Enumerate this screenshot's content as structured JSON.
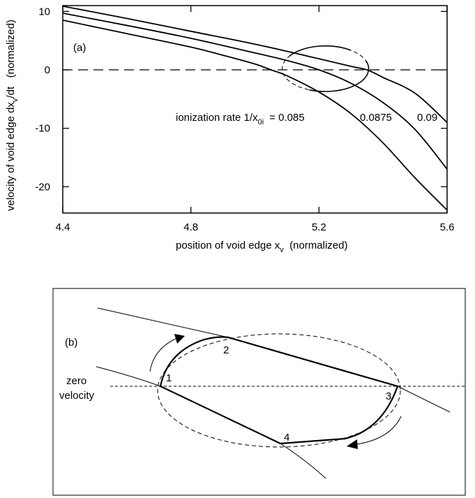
{
  "chart_data": [
    {
      "type": "line",
      "panel_label": "(a)",
      "xlabel": "position of void edge x",
      "xlabel_sub": "v",
      "xlabel_suffix": "  (normalized)",
      "ylabel": "velocity of void edge  dx",
      "ylabel_sub": "v",
      "ylabel_suffix": "/dt   (normalized)",
      "xlim": [
        4.4,
        5.6
      ],
      "ylim": [
        -24.5,
        11
      ],
      "xticks": [
        "4.4",
        "4.8",
        "5.2",
        "5.6"
      ],
      "yticks": [
        "10",
        "0",
        "-10",
        "-20"
      ],
      "annotation": {
        "prefix": "ionization rate 1/x",
        "sub": "0i",
        "values": [
          "= 0.085",
          "0.0875",
          "0.09"
        ]
      },
      "series": [
        {
          "name": "0.085",
          "x": [
            4.4,
            4.6,
            4.8,
            4.9,
            5.0,
            5.05,
            5.1,
            5.2,
            5.3,
            5.4,
            5.5,
            5.6
          ],
          "y": [
            8.5,
            6.2,
            3.9,
            2.5,
            1.0,
            0.0,
            -1.0,
            -3.8,
            -7.5,
            -12.5,
            -18.5,
            -24.0
          ]
        },
        {
          "name": "0.0875",
          "x": [
            4.4,
            4.6,
            4.8,
            5.0,
            5.1,
            5.2,
            5.3,
            5.4,
            5.5,
            5.6
          ],
          "y": [
            9.7,
            7.6,
            5.4,
            2.9,
            1.6,
            0.0,
            -2.3,
            -5.6,
            -10.2,
            -17.0
          ]
        },
        {
          "name": "0.09",
          "x": [
            4.4,
            4.6,
            4.8,
            5.0,
            5.2,
            5.3,
            5.35,
            5.4,
            5.5,
            5.6
          ],
          "y": [
            10.9,
            8.8,
            6.6,
            4.4,
            1.9,
            0.6,
            0.0,
            -1.3,
            -4.0,
            -9.0
          ]
        }
      ],
      "zero_line": 0,
      "ellipse": {
        "center": [
          5.22,
          0.2
        ],
        "rx": 0.135,
        "ry": 3.9
      }
    },
    {
      "type": "diagram",
      "panel_label": "(b)",
      "zero_label": [
        "zero",
        "velocity"
      ],
      "points": [
        "1",
        "2",
        "3",
        "4"
      ]
    }
  ]
}
